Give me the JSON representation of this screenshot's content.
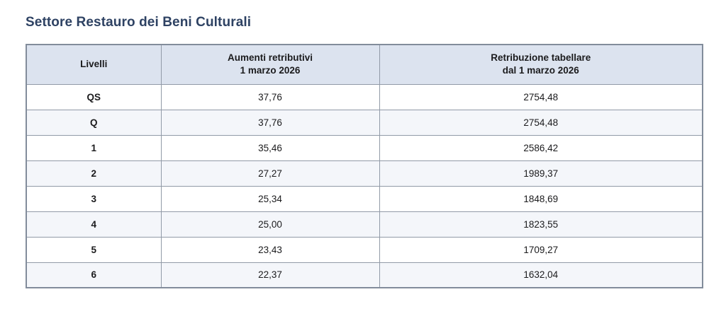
{
  "title": "Settore Restauro dei Beni Culturali",
  "colors": {
    "title_text": "#2e4263",
    "header_background": "#dce3ef",
    "alt_row_background": "#f4f6fa",
    "table_border": "#828c9b",
    "cell_text": "#1b1b1d"
  },
  "table": {
    "headers": [
      "Livelli",
      "Aumenti retributivi\n1 marzo 2026",
      "Retribuzione tabellare\ndal 1 marzo 2026"
    ],
    "rows": [
      {
        "level": "QS",
        "aumento": "37,76",
        "retribuzione": "2754,48"
      },
      {
        "level": "Q",
        "aumento": "37,76",
        "retribuzione": "2754,48"
      },
      {
        "level": "1",
        "aumento": "35,46",
        "retribuzione": "2586,42"
      },
      {
        "level": "2",
        "aumento": "27,27",
        "retribuzione": "1989,37"
      },
      {
        "level": "3",
        "aumento": "25,34",
        "retribuzione": "1848,69"
      },
      {
        "level": "4",
        "aumento": "25,00",
        "retribuzione": "1823,55"
      },
      {
        "level": "5",
        "aumento": "23,43",
        "retribuzione": "1709,27"
      },
      {
        "level": "6",
        "aumento": "22,37",
        "retribuzione": "1632,04"
      }
    ]
  }
}
